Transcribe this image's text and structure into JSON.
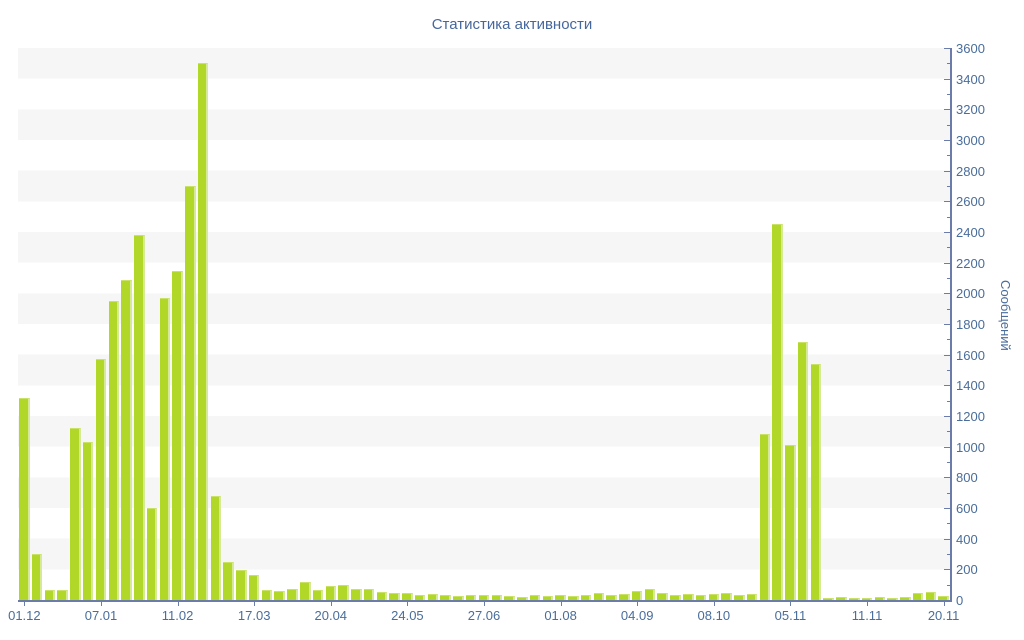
{
  "title": "Статистика активности",
  "chart_data": {
    "type": "bar",
    "title": "Статистика активности",
    "xlabel": "",
    "ylabel": "Сообщений",
    "ylim": [
      0,
      3600
    ],
    "y_major_step": 200,
    "y_minor_step": 100,
    "y_tick_labels": [
      "0",
      "200",
      "400",
      "600",
      "800",
      "1000",
      "1200",
      "1400",
      "1600",
      "1800",
      "2000",
      "2200",
      "2400",
      "2600",
      "2800",
      "3000",
      "3200",
      "3400",
      "3600"
    ],
    "legend": "none",
    "grid": "striped-bands",
    "y_axis_side": "right",
    "x_tick_every": 6,
    "x_tick_labels": [
      "01.12",
      "07.01",
      "11.02",
      "17.03",
      "20.04",
      "24.05",
      "27.06",
      "01.08",
      "04.09",
      "08.10",
      "05.11",
      "11.11",
      "20.11"
    ],
    "values": [
      1320,
      300,
      65,
      65,
      1120,
      1030,
      1570,
      1950,
      2085,
      2380,
      600,
      1970,
      2145,
      2700,
      3505,
      680,
      245,
      195,
      165,
      65,
      60,
      70,
      120,
      65,
      90,
      100,
      75,
      70,
      50,
      45,
      45,
      30,
      40,
      30,
      25,
      35,
      35,
      30,
      25,
      20,
      30,
      25,
      30,
      25,
      35,
      45,
      35,
      40,
      60,
      75,
      45,
      35,
      40,
      35,
      40,
      45,
      30,
      40,
      1080,
      2450,
      1010,
      1680,
      1540,
      15,
      20,
      15,
      15,
      20,
      15,
      20,
      45,
      55,
      25
    ],
    "colors": {
      "bar": "#b1d828",
      "bar_edge": "#d6e996",
      "axis": "#6b7cab",
      "tick_label": "#4a6d9b",
      "title": "#46679c",
      "stripe": "#f6f6f6",
      "background": "#ffffff"
    }
  }
}
